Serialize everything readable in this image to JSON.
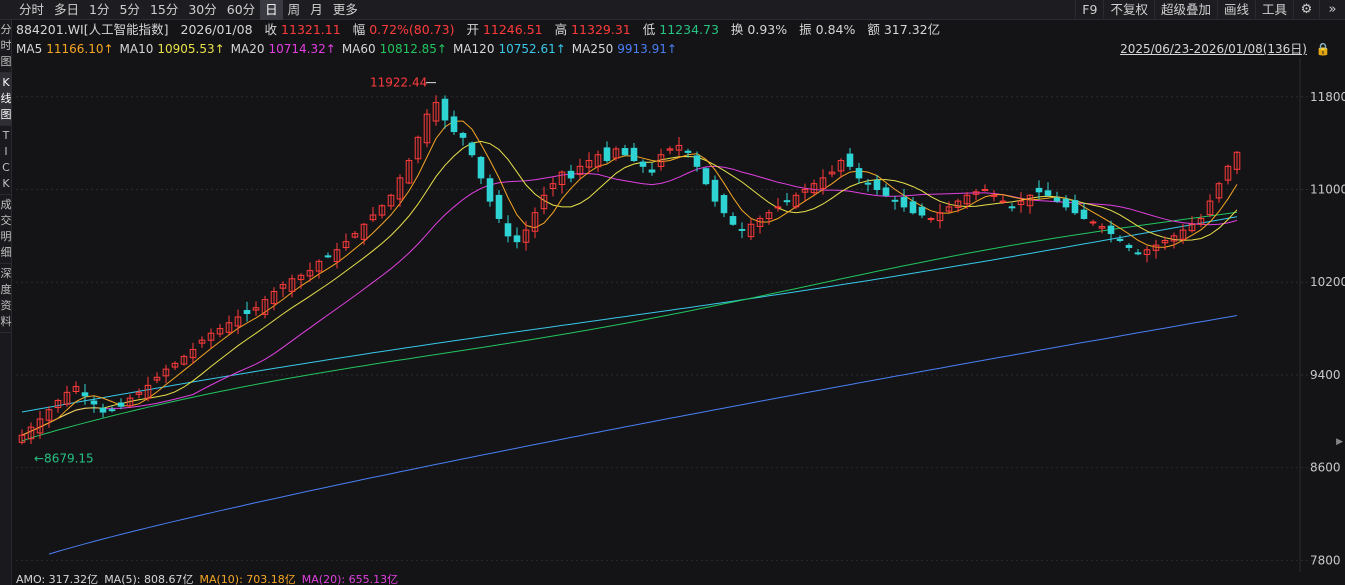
{
  "toolbar": {
    "periods": [
      "分时",
      "多日",
      "1分",
      "5分",
      "15分",
      "30分",
      "60分",
      "日",
      "周",
      "月",
      "更多"
    ],
    "active_period": "日",
    "tools": [
      "F9",
      "不复权",
      "超级叠加",
      "画线",
      "工具"
    ]
  },
  "sidebar": {
    "tabs": [
      "分时图",
      "K线图",
      "TICK",
      "成交明细",
      "深度资料"
    ],
    "active": "K线图"
  },
  "quote": {
    "code": "884201.WI[人工智能指数]",
    "date": "2026/01/08",
    "close_label": "收",
    "close": "11321.11",
    "change_label": "幅",
    "change": "0.72%(80.73)",
    "open_label": "开",
    "open": "11246.51",
    "high_label": "高",
    "high": "11329.31",
    "low_label": "低",
    "low": "11234.73",
    "turnover_label": "换",
    "turnover": "0.93%",
    "amplitude_label": "振",
    "amplitude": "0.84%",
    "amount_label": "额",
    "amount": "317.32亿"
  },
  "range": "2025/06/23-2026/01/08(136日)",
  "amo": [
    {
      "text": "AMO: 317.32亿",
      "color": "#d6d6d6"
    },
    {
      "text": "MA(5): 808.67亿",
      "color": "#d6d6d6"
    },
    {
      "text": "MA(10): 703.18亿",
      "color": "#f5a623"
    },
    {
      "text": "MA(20): 655.13亿",
      "color": "#e040e0"
    }
  ],
  "colors": {
    "up": "#ff3b3b",
    "down": "#2fd3d3",
    "ma5": "#f5a623",
    "ma10": "#e8e04a",
    "ma20": "#e040e0",
    "ma60": "#22c55e",
    "ma120": "#38c8e8",
    "ma250": "#4a7ff5"
  },
  "chart_data": {
    "type": "candlestick",
    "y_axis_ticks": [
      7800,
      8600,
      9400,
      10200,
      11000,
      11800
    ],
    "ylim": [
      7700,
      12100
    ],
    "bars": 136,
    "ma_legend": [
      {
        "name": "MA5",
        "value": "11166.10",
        "color": "#f5a623"
      },
      {
        "name": "MA10",
        "value": "10905.53",
        "color": "#e8e04a"
      },
      {
        "name": "MA20",
        "value": "10714.32",
        "color": "#e040e0"
      },
      {
        "name": "MA60",
        "value": "10812.85",
        "color": "#22c55e"
      },
      {
        "name": "MA120",
        "value": "10752.61",
        "color": "#38c8e8"
      },
      {
        "name": "MA250",
        "value": "9913.91",
        "color": "#4a7ff5"
      }
    ],
    "ma_arrow": "↑",
    "max_label": "11922.44",
    "min_label": "8679.15",
    "ohlc_close_path": [
      8880,
      8950,
      9020,
      9100,
      9180,
      9250,
      9300,
      9220,
      9150,
      9080,
      9100,
      9130,
      9200,
      9250,
      9310,
      9380,
      9450,
      9500,
      9560,
      9620,
      9700,
      9760,
      9800,
      9850,
      9900,
      9930,
      9980,
      10050,
      10120,
      10180,
      10230,
      10260,
      10300,
      10380,
      10420,
      10480,
      10550,
      10620,
      10700,
      10780,
      10860,
      10950,
      11100,
      11250,
      11450,
      11650,
      11750,
      11600,
      11500,
      11450,
      11300,
      11100,
      10900,
      10750,
      10600,
      10550,
      10650,
      10800,
      10950,
      11050,
      11150,
      11100,
      11200,
      11250,
      11300,
      11250,
      11350,
      11300,
      11250,
      11200,
      11150,
      11300,
      11350,
      11380,
      11320,
      11200,
      11050,
      10900,
      10800,
      10700,
      10650,
      10700,
      10750,
      10800,
      10850,
      10900,
      10950,
      11000,
      11050,
      11100,
      11150,
      11250,
      11200,
      11100,
      11050,
      11000,
      10950,
      10900,
      10850,
      10800,
      10780,
      10750,
      10800,
      10850,
      10900,
      10950,
      10980,
      11000,
      10950,
      10900,
      10850,
      10900,
      10950,
      10980,
      10950,
      10900,
      10850,
      10800,
      10750,
      10720,
      10680,
      10620,
      10560,
      10500,
      10450,
      10480,
      10520,
      10560,
      10600,
      10650,
      10700,
      10750,
      10900,
      11050,
      11200,
      11321
    ]
  }
}
